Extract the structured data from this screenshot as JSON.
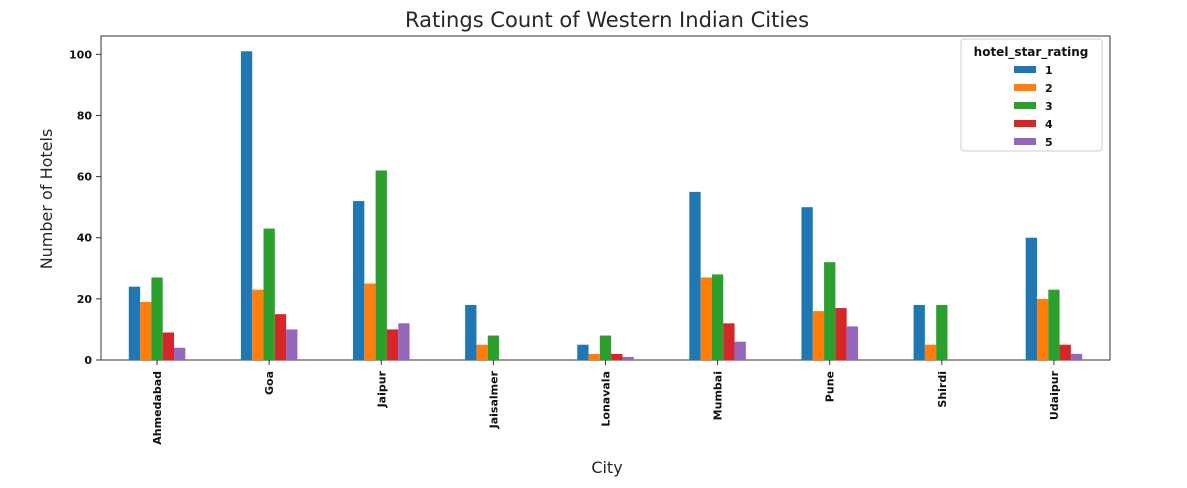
{
  "chart_data": {
    "type": "bar",
    "title": "Ratings Count of Western Indian Cities",
    "xlabel": "City",
    "ylabel": "Number of Hotels",
    "categories": [
      "Ahmedabad",
      "Goa",
      "Jaipur",
      "Jaisalmer",
      "Lonavala",
      "Mumbai",
      "Pune",
      "Shirdi",
      "Udaipur"
    ],
    "yticks": [
      "0",
      "20",
      "40",
      "60",
      "80",
      "100"
    ],
    "ylim": [
      0,
      106
    ],
    "grid": false,
    "legend": {
      "title": "hotel_star_rating",
      "placement": "top-right"
    },
    "series": [
      {
        "name": "1",
        "color": "#1f77b4",
        "values": [
          24,
          101,
          52,
          18,
          5,
          55,
          50,
          18,
          40
        ]
      },
      {
        "name": "2",
        "color": "#ff7f0e",
        "values": [
          19,
          23,
          25,
          5,
          2,
          27,
          16,
          5,
          20
        ]
      },
      {
        "name": "3",
        "color": "#2ca02c",
        "values": [
          27,
          43,
          62,
          8,
          8,
          28,
          32,
          18,
          23
        ]
      },
      {
        "name": "4",
        "color": "#d62728",
        "values": [
          9,
          15,
          10,
          0,
          2,
          12,
          17,
          0,
          5
        ]
      },
      {
        "name": "5",
        "color": "#9467bd",
        "values": [
          4,
          10,
          12,
          0,
          1,
          6,
          11,
          0,
          2
        ]
      }
    ]
  }
}
